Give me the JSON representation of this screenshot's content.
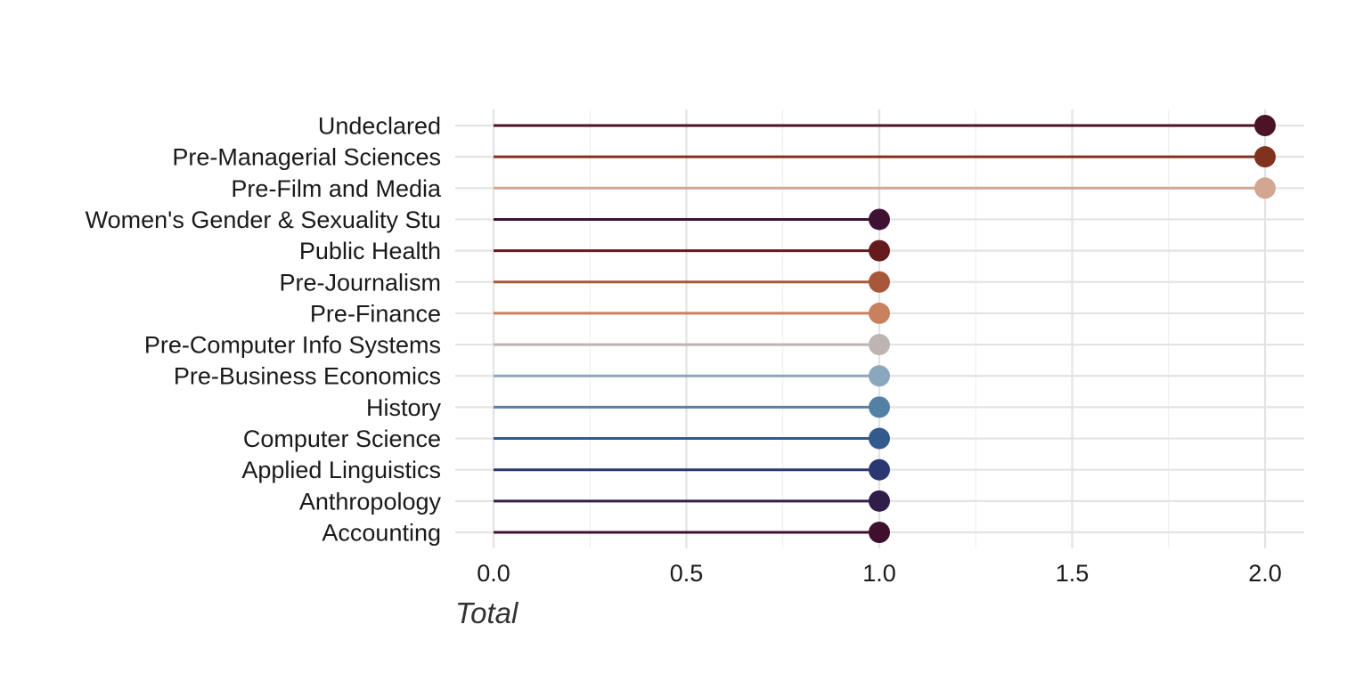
{
  "chart_data": {
    "type": "lollipop",
    "xlabel": "Total",
    "ylabel": "",
    "xlim": [
      -0.1,
      2.1
    ],
    "x_ticks": [
      0.0,
      0.5,
      1.0,
      1.5,
      2.0
    ],
    "x_tick_labels": [
      "0.0",
      "0.5",
      "1.0",
      "1.5",
      "2.0"
    ],
    "grid": true,
    "legend": "none",
    "categories": [
      "Undeclared",
      "Pre-Managerial Sciences",
      "Pre-Film and Media",
      "Women's Gender & Sexuality Stu",
      "Public Health",
      "Pre-Journalism",
      "Pre-Finance",
      "Pre-Computer Info Systems",
      "Pre-Business Economics",
      "History",
      "Computer Science",
      "Applied Linguistics",
      "Anthropology",
      "Accounting"
    ],
    "values": [
      2,
      2,
      2,
      1,
      1,
      1,
      1,
      1,
      1,
      1,
      1,
      1,
      1,
      1
    ],
    "colors": [
      "#4a1326",
      "#81321e",
      "#d2a690",
      "#3f1233",
      "#661a1e",
      "#a8573a",
      "#c9805f",
      "#bdb5b1",
      "#8aa7bd",
      "#5580a5",
      "#325a8c",
      "#2a3770",
      "#301d4a",
      "#3e102e"
    ]
  }
}
